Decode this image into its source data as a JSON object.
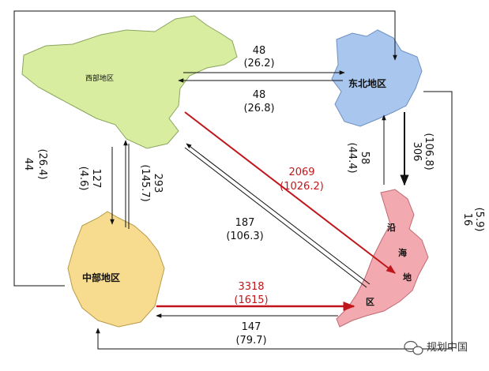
{
  "regions": {
    "west": "西部地区",
    "northeast": "东北地区",
    "central": "中部地区",
    "coastal_chars": [
      "沿",
      "海",
      "地",
      "区"
    ]
  },
  "flows": {
    "w_to_ne": {
      "value": "48",
      "share": "(26.2)"
    },
    "ne_to_w": {
      "value": "48",
      "share": "(26.8)"
    },
    "ne_to_coast": {
      "value": "306",
      "share": "(106.8)"
    },
    "coast_to_ne": {
      "value": "58",
      "share": "(44.4)"
    },
    "ne_to_central": {
      "value": "16",
      "share": "(5.9)"
    },
    "central_to_ne": {
      "value": "44",
      "share": "(26.4)"
    },
    "w_to_central": {
      "value": "127",
      "share": "(4.6)"
    },
    "central_to_w": {
      "value": "293",
      "share": "(145.7)"
    },
    "w_to_coast": {
      "value": "2069",
      "share": "(1026.2)"
    },
    "coast_to_w": {
      "value": "187",
      "share": "(106.3)"
    },
    "central_to_coast": {
      "value": "3318",
      "share": "(1615)"
    },
    "coast_to_central": {
      "value": "147",
      "share": "(79.7)"
    }
  },
  "colors": {
    "west": "#d8eda0",
    "northeast": "#a9c7ee",
    "central": "#f7dc8f",
    "coastal": "#f2a9b0",
    "red_arrow": "#c0161b",
    "black_arrow": "#111111"
  },
  "watermark": {
    "icon": "wechat-icon",
    "text": "规划中国"
  }
}
